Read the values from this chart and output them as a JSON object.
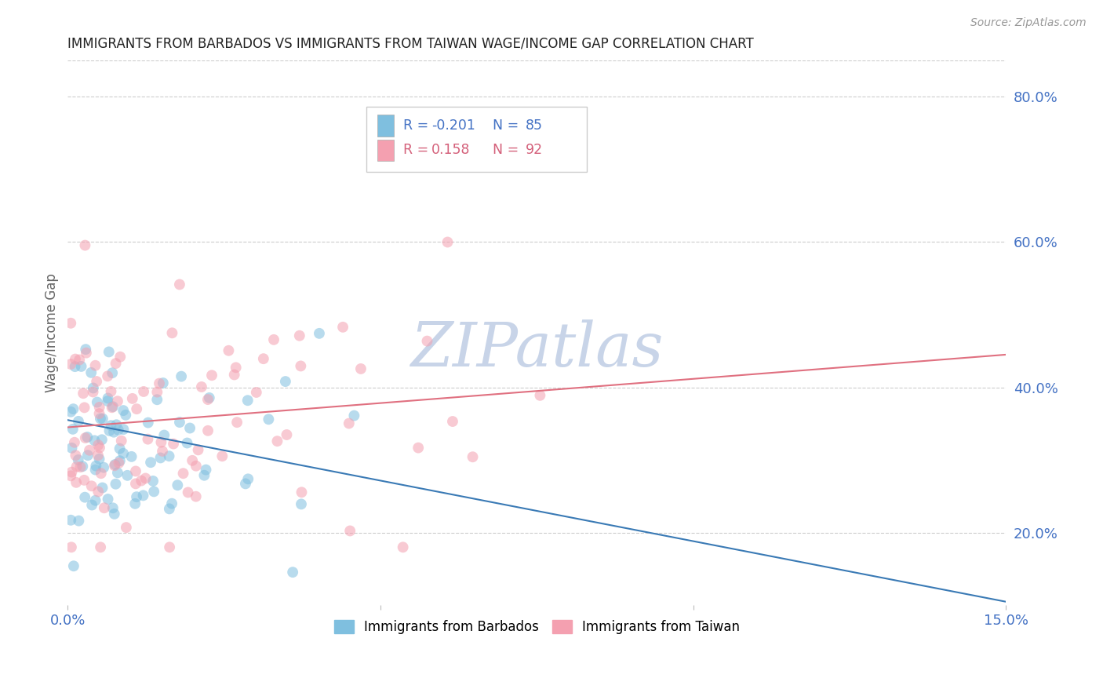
{
  "title": "IMMIGRANTS FROM BARBADOS VS IMMIGRANTS FROM TAIWAN WAGE/INCOME GAP CORRELATION CHART",
  "source": "Source: ZipAtlas.com",
  "ylabel": "Wage/Income Gap",
  "right_ytick_labels": [
    "20.0%",
    "40.0%",
    "60.0%",
    "80.0%"
  ],
  "right_ytick_values": [
    0.2,
    0.4,
    0.6,
    0.8
  ],
  "xlim": [
    0.0,
    0.15
  ],
  "ylim": [
    0.1,
    0.85
  ],
  "xtick_labels": [
    "0.0%",
    "",
    "",
    "15.0%"
  ],
  "xtick_values": [
    0.0,
    0.05,
    0.1,
    0.15
  ],
  "barbados_color": "#7fbfdf",
  "barbados_line_color": "#3a7ab5",
  "taiwan_color": "#f4a0b0",
  "taiwan_line_color": "#e07080",
  "barbados_label": "Immigrants from Barbados",
  "taiwan_label": "Immigrants from Taiwan",
  "barbados_R": -0.201,
  "barbados_N": 85,
  "taiwan_R": 0.158,
  "taiwan_N": 92,
  "watermark": "ZIPatlas",
  "watermark_color": "#c8d4e8",
  "background_color": "#ffffff",
  "grid_color": "#cccccc",
  "title_color": "#222222",
  "axis_label_color": "#666666",
  "tick_label_color": "#4472c4",
  "legend_color_barbados": "#4472c4",
  "legend_color_taiwan": "#d4607a",
  "alpha": 0.55,
  "marker_size": 100,
  "barbados_trend_x0": 0.0,
  "barbados_trend_y0": 0.355,
  "barbados_trend_x1": 0.15,
  "barbados_trend_y1": 0.105,
  "taiwan_trend_x0": 0.0,
  "taiwan_trend_y0": 0.345,
  "taiwan_trend_x1": 0.15,
  "taiwan_trend_y1": 0.445
}
